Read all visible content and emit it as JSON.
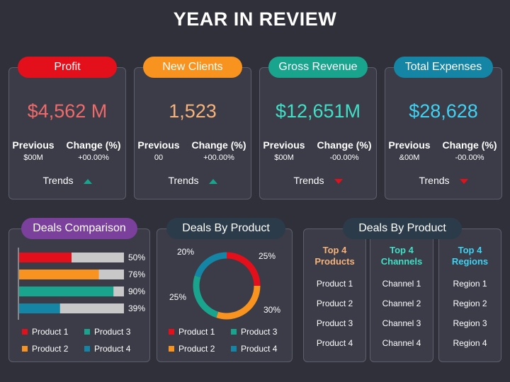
{
  "title": "YEAR IN REVIEW",
  "colors": {
    "red": "#e3101c",
    "orange": "#f7931e",
    "green": "#19a58d",
    "blue": "#1585a5",
    "purple": "#7b3f9c",
    "dark_pill": "#2c3b4a",
    "grey_bar": "#c8c8c8"
  },
  "kpis": [
    {
      "label": "Profit",
      "value": "$4,562 M",
      "value_color": "#f06a6a",
      "pill_color": "#e3101c",
      "prev_label": "Previous",
      "prev_value": "$00M",
      "change_label": "Change (%)",
      "change_value": "+00.00%",
      "trend_label": "Trends",
      "trend": "up"
    },
    {
      "label": "New Clients",
      "value": "1,523",
      "value_color": "#f7b37a",
      "pill_color": "#f7931e",
      "prev_label": "Previous",
      "prev_value": "00",
      "change_label": "Change (%)",
      "change_value": "+00.00%",
      "trend_label": "Trends",
      "trend": "up"
    },
    {
      "label": "Gross Revenue",
      "value": "$12,651M",
      "value_color": "#3fe0c5",
      "pill_color": "#19a58d",
      "prev_label": "Previous",
      "prev_value": "$00M",
      "change_label": "Change (%)",
      "change_value": "-00.00%",
      "trend_label": "Trends",
      "trend": "down"
    },
    {
      "label": "Total Expenses",
      "value": "$28,628",
      "value_color": "#3fd2f2",
      "pill_color": "#1585a5",
      "prev_label": "Previous",
      "prev_value": "&00M",
      "change_label": "Change (%)",
      "change_value": "-00.00%",
      "trend_label": "Trends",
      "trend": "down"
    }
  ],
  "deals_comparison": {
    "label": "Deals Comparison",
    "bars": [
      {
        "value": 50,
        "text": "50%",
        "color": "#e3101c"
      },
      {
        "value": 76,
        "text": "76%",
        "color": "#f7931e"
      },
      {
        "value": 90,
        "text": "90%",
        "color": "#19a58d"
      },
      {
        "value": 39,
        "text": "39%",
        "color": "#1585a5"
      }
    ],
    "legend": [
      {
        "name": "Product 1",
        "color": "#e3101c"
      },
      {
        "name": "Product 3",
        "color": "#19a58d"
      },
      {
        "name": "Product 2",
        "color": "#f7931e"
      },
      {
        "name": "Product 4",
        "color": "#1585a5"
      }
    ]
  },
  "deals_by_product": {
    "label": "Deals By Product",
    "chart_data": {
      "type": "pie",
      "categories": [
        "Product 1",
        "Product 2",
        "Product 3",
        "Product 4"
      ],
      "values": [
        25,
        30,
        25,
        20
      ],
      "labels": [
        "25%",
        "30%",
        "25%",
        "20%"
      ],
      "colors": [
        "#e3101c",
        "#f7931e",
        "#19a58d",
        "#1585a5"
      ]
    },
    "legend": [
      {
        "name": "Product 1",
        "color": "#e3101c"
      },
      {
        "name": "Product 3",
        "color": "#19a58d"
      },
      {
        "name": "Product 2",
        "color": "#f7931e"
      },
      {
        "name": "Product 4",
        "color": "#1585a5"
      }
    ]
  },
  "top_lists": {
    "label": "Deals By Product",
    "columns": [
      {
        "title_line1": "Top 4",
        "title_line2": "Products",
        "color": "#f7b37a",
        "items": [
          "Product 1",
          "Product 2",
          "Product 3",
          "Product 4"
        ]
      },
      {
        "title_line1": "Top 4",
        "title_line2": "Channels",
        "color": "#3fe0c5",
        "items": [
          "Channel 1",
          "Channel 2",
          "Channel 3",
          "Channel 4"
        ]
      },
      {
        "title_line1": "Top 4",
        "title_line2": "Regions",
        "color": "#3fd2f2",
        "items": [
          "Region 1",
          "Region 2",
          "Region 3",
          "Region 4"
        ]
      }
    ]
  }
}
